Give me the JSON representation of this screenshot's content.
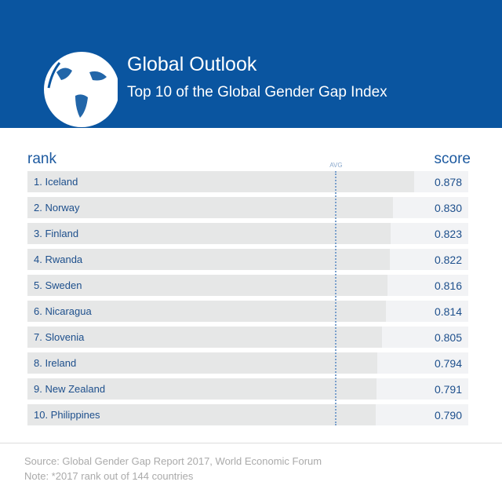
{
  "header": {
    "title": "Global Outlook",
    "subtitle": "Top 10 of the Global Gender Gap Index",
    "icon": "globe-icon",
    "color": "#0a55a0"
  },
  "chart_data": {
    "type": "bar",
    "orientation": "horizontal",
    "rank_header": "rank",
    "score_header": "score",
    "avg_label": "AVG",
    "avg_value": 0.7,
    "xlim": [
      0,
      1
    ],
    "categories": [
      "1. Iceland",
      "2. Norway",
      "3. Finland",
      "4. Rwanda",
      "5. Sweden",
      "6. Nicaragua",
      "7. Slovenia",
      "8. Ireland",
      "9. New Zealand",
      "10. Philippines"
    ],
    "values": [
      0.878,
      0.83,
      0.823,
      0.822,
      0.816,
      0.814,
      0.805,
      0.794,
      0.791,
      0.79
    ],
    "value_labels": [
      "0.878",
      "0.830",
      "0.823",
      "0.822",
      "0.816",
      "0.814",
      "0.805",
      "0.794",
      "0.791",
      "0.790"
    ]
  },
  "footer": {
    "source": "Source: Global Gender Gap Report 2017, World Economic Forum",
    "note": "Note: *2017 rank out of 144 countries"
  }
}
